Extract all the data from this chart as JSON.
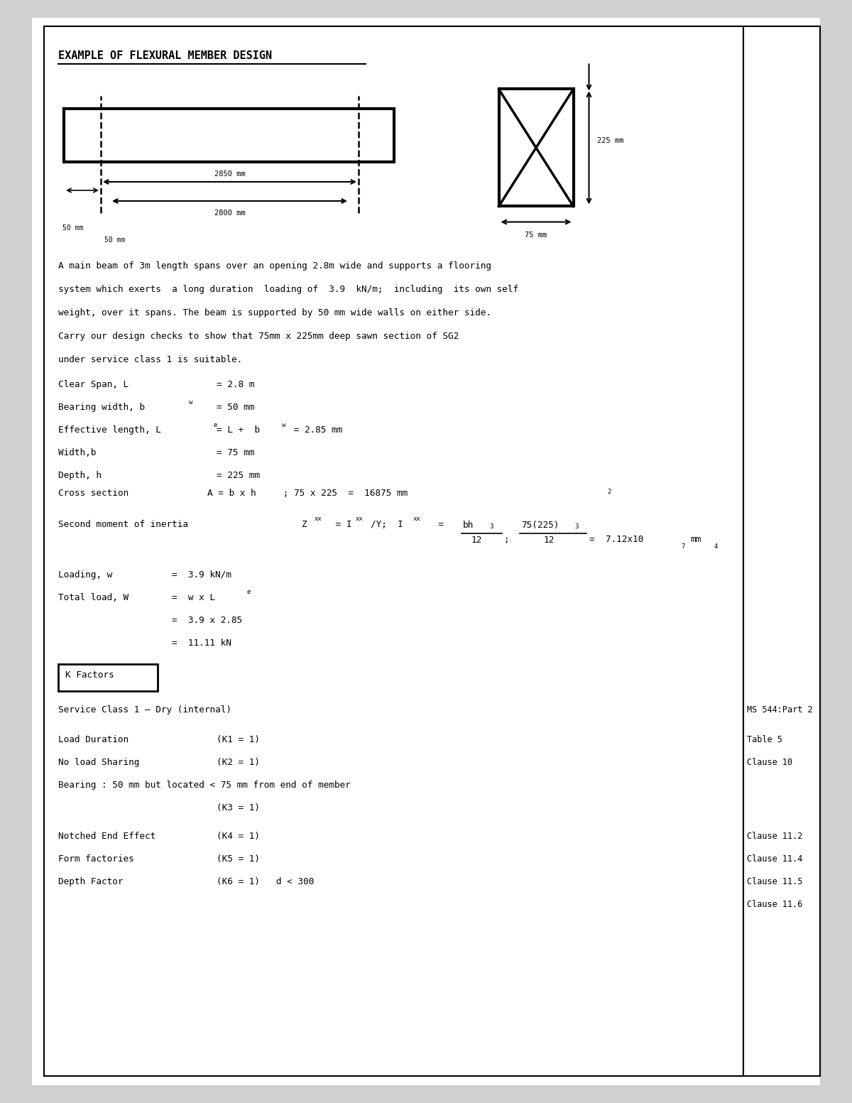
{
  "title": "EXAMPLE OF FLEXURAL MEMBER DESIGN",
  "background_color": "#ffffff",
  "border_color": "#000000",
  "description_lines": [
    "A main beam of 3m length spans over an opening 2.8m wide and supports a flooring",
    "system which exerts  a long duration  loading of  3.9  kN/m;  including  its own self",
    "weight, over it spans. The beam is supported by 50 mm wide walls on either side.",
    "Carry our design checks to show that 75mm x 225mm deep sawn section of SG2",
    "under service class 1 is suitable."
  ],
  "k_factors_label": "K Factors",
  "service_class_line": "Service Class 1 – Dry (internal)",
  "references": [
    "MS 544:Part 2",
    "",
    "Table 5",
    "Clause 10",
    "",
    "Clause 11.2",
    "Clause 11.4",
    "Clause 11.5",
    "Clause 11.6"
  ]
}
